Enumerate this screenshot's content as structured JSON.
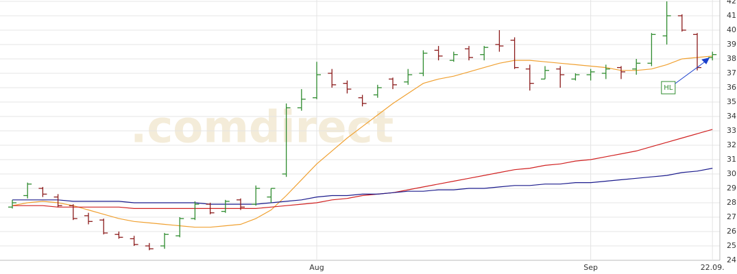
{
  "chart_data": {
    "type": "ohlc",
    "watermark": ".comdirect",
    "categories": [
      null,
      null,
      null,
      null,
      null,
      null,
      null,
      null,
      null,
      null,
      null,
      null,
      null,
      null,
      null,
      null,
      null,
      null,
      null,
      null,
      "Aug",
      null,
      null,
      null,
      null,
      null,
      null,
      null,
      null,
      null,
      null,
      null,
      null,
      null,
      null,
      null,
      null,
      null,
      "Sep",
      null,
      null,
      null,
      null,
      null,
      null,
      null,
      "22.09."
    ],
    "open": [
      27.7,
      28.5,
      29.0,
      28.4,
      27.8,
      27.1,
      26.8,
      25.8,
      25.5,
      25.0,
      25.0,
      25.7,
      26.9,
      27.9,
      27.4,
      28.2,
      27.9,
      28.4,
      30.0,
      34.6,
      35.3,
      37.0,
      36.3,
      35.3,
      35.5,
      36.6,
      36.4,
      37.0,
      38.6,
      37.9,
      38.7,
      38.3,
      39.0,
      39.3,
      37.3,
      36.6,
      37.3,
      36.6,
      36.9,
      37.0,
      37.4,
      37.3,
      37.7,
      39.6,
      41.0,
      39.7,
      38.1
    ],
    "high": [
      28.2,
      29.4,
      29.1,
      28.6,
      27.9,
      27.3,
      26.9,
      26.0,
      25.7,
      25.2,
      25.9,
      27.0,
      28.1,
      28.0,
      28.2,
      28.3,
      29.2,
      29.0,
      34.9,
      35.9,
      37.8,
      37.3,
      36.5,
      35.5,
      36.2,
      36.7,
      37.3,
      38.6,
      38.9,
      38.5,
      38.9,
      38.9,
      40.0,
      39.5,
      37.6,
      37.5,
      37.5,
      37.0,
      37.3,
      37.6,
      37.5,
      38.0,
      39.8,
      42.0,
      41.1,
      39.8,
      38.5
    ],
    "low": [
      27.6,
      28.3,
      28.4,
      27.7,
      26.8,
      26.5,
      25.8,
      25.5,
      25.0,
      24.7,
      24.8,
      25.6,
      26.8,
      27.2,
      27.3,
      27.5,
      27.8,
      28.0,
      29.8,
      34.4,
      35.2,
      36.0,
      35.6,
      34.7,
      35.3,
      35.9,
      36.2,
      36.8,
      37.9,
      37.8,
      37.9,
      37.9,
      38.5,
      37.3,
      35.8,
      36.6,
      36.0,
      36.5,
      36.5,
      36.6,
      36.6,
      36.9,
      37.5,
      39.0,
      39.9,
      37.2,
      37.9
    ],
    "close": [
      28.0,
      29.3,
      28.6,
      27.8,
      26.9,
      26.7,
      25.9,
      25.6,
      25.1,
      24.8,
      25.8,
      26.9,
      27.9,
      27.3,
      28.1,
      27.7,
      29.0,
      29.0,
      34.6,
      35.2,
      36.9,
      36.2,
      35.9,
      34.9,
      36.0,
      36.2,
      36.9,
      38.4,
      38.2,
      38.3,
      38.1,
      38.8,
      38.9,
      37.4,
      36.3,
      37.2,
      36.9,
      36.9,
      37.1,
      37.3,
      37.1,
      37.7,
      39.7,
      41.0,
      40.0,
      37.4,
      38.3
    ],
    "up_color": "#2e8b2e",
    "down_color": "#8b1a1a",
    "lines": [
      {
        "color": "#f0a030",
        "values": [
          27.8,
          28.0,
          28.1,
          28.0,
          27.8,
          27.5,
          27.2,
          26.9,
          26.7,
          26.6,
          26.5,
          26.4,
          26.3,
          26.3,
          26.4,
          26.5,
          26.9,
          27.5,
          28.5,
          29.6,
          30.7,
          31.6,
          32.5,
          33.3,
          34.1,
          34.9,
          35.6,
          36.3,
          36.6,
          36.8,
          37.1,
          37.4,
          37.7,
          37.9,
          37.9,
          37.8,
          37.7,
          37.6,
          37.5,
          37.4,
          37.2,
          37.2,
          37.3,
          37.6,
          38.0,
          38.1,
          38.2
        ]
      },
      {
        "color": "#d02020",
        "values": [
          27.8,
          27.8,
          27.8,
          27.7,
          27.7,
          27.7,
          27.7,
          27.7,
          27.6,
          27.6,
          27.6,
          27.6,
          27.6,
          27.6,
          27.6,
          27.6,
          27.6,
          27.7,
          27.8,
          27.9,
          28.0,
          28.2,
          28.3,
          28.5,
          28.6,
          28.7,
          28.9,
          29.1,
          29.3,
          29.5,
          29.7,
          29.9,
          30.1,
          30.3,
          30.4,
          30.6,
          30.7,
          30.9,
          31.0,
          31.2,
          31.4,
          31.6,
          31.9,
          32.2,
          32.5,
          32.8,
          33.1
        ]
      },
      {
        "color": "#1a1a8c",
        "values": [
          28.2,
          28.2,
          28.2,
          28.2,
          28.1,
          28.1,
          28.1,
          28.1,
          28.0,
          28.0,
          28.0,
          28.0,
          28.0,
          27.9,
          27.9,
          27.9,
          27.9,
          28.0,
          28.1,
          28.2,
          28.4,
          28.5,
          28.5,
          28.6,
          28.6,
          28.7,
          28.8,
          28.8,
          28.9,
          28.9,
          29.0,
          29.0,
          29.1,
          29.2,
          29.2,
          29.3,
          29.3,
          29.4,
          29.4,
          29.5,
          29.6,
          29.7,
          29.8,
          29.9,
          30.1,
          30.2,
          30.4
        ]
      }
    ],
    "annotation": {
      "text": "HL",
      "index": 44,
      "target": 38.1,
      "color": "#2e8b2e",
      "arrow_color": "#1a3fcc"
    },
    "ylim": [
      24,
      42
    ],
    "yticks": [
      24,
      25,
      26,
      27,
      28,
      29,
      30,
      31,
      32,
      33,
      34,
      35,
      36,
      37,
      38,
      39,
      40,
      41,
      42
    ],
    "grid": true
  }
}
